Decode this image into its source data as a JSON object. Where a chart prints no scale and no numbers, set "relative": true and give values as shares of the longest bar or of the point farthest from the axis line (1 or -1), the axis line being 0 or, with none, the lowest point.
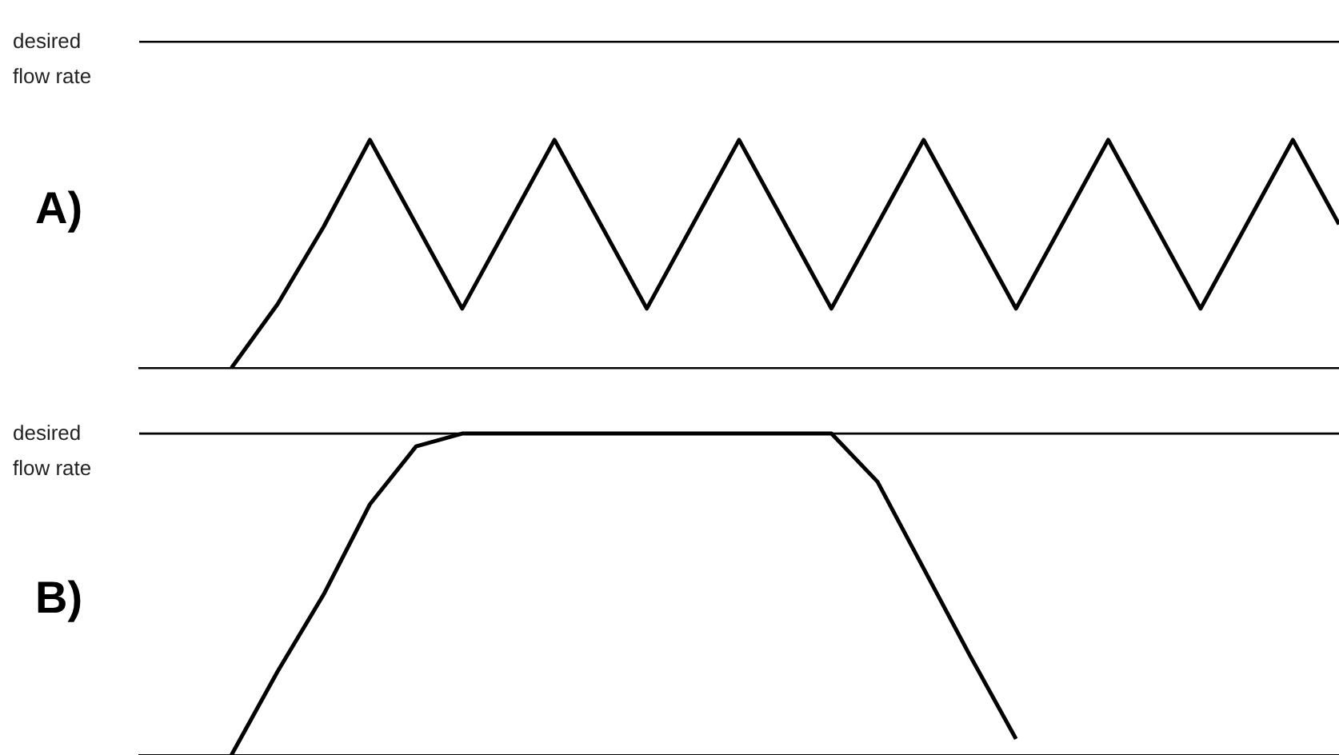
{
  "chart_data": [
    {
      "type": "line",
      "title": "A)",
      "relative": true,
      "tick_labels": false,
      "grid": false,
      "legend": false,
      "marker": "none",
      "categories": [
        null,
        null,
        null,
        null,
        null,
        null,
        null,
        null,
        null,
        null,
        null,
        null,
        null,
        null,
        null,
        null,
        null,
        null,
        null,
        null,
        null,
        null,
        null,
        null,
        null,
        null,
        null
      ],
      "series": [
        {
          "color": "#000000",
          "values": [
            null,
            null,
            0,
            0.28,
            0.62,
            1,
            0.63,
            0.26,
            0.63,
            1,
            0.63,
            0.26,
            0.63,
            1,
            0.63,
            0.26,
            0.63,
            1,
            0.63,
            0.26,
            0.63,
            1,
            0.63,
            0.26,
            0.63,
            1,
            0.63
          ]
        }
      ],
      "ref_lines": [
        {
          "axis": "y",
          "value": 1.43,
          "label": "desired flow rate",
          "color": "#000000"
        }
      ]
    },
    {
      "type": "line",
      "title": "B)",
      "relative": true,
      "tick_labels": false,
      "grid": false,
      "legend": false,
      "marker": "none",
      "categories": [
        null,
        null,
        null,
        null,
        null,
        null,
        null,
        null,
        null,
        null,
        null,
        null,
        null,
        null,
        null,
        null,
        null,
        null,
        null,
        null,
        null,
        null,
        null,
        null,
        null,
        null,
        null
      ],
      "series": [
        {
          "color": "#000000",
          "values": [
            null,
            null,
            0,
            0.26,
            0.5,
            0.78,
            0.96,
            1,
            1,
            1,
            1,
            1,
            1,
            1,
            1,
            1,
            0.85,
            0.58,
            0.31,
            0.05,
            null,
            null,
            null,
            null,
            null,
            null,
            null
          ]
        }
      ],
      "ref_lines": [
        {
          "axis": "y",
          "value": 1,
          "label": "desired flow rate",
          "color": "#000000"
        }
      ]
    }
  ]
}
